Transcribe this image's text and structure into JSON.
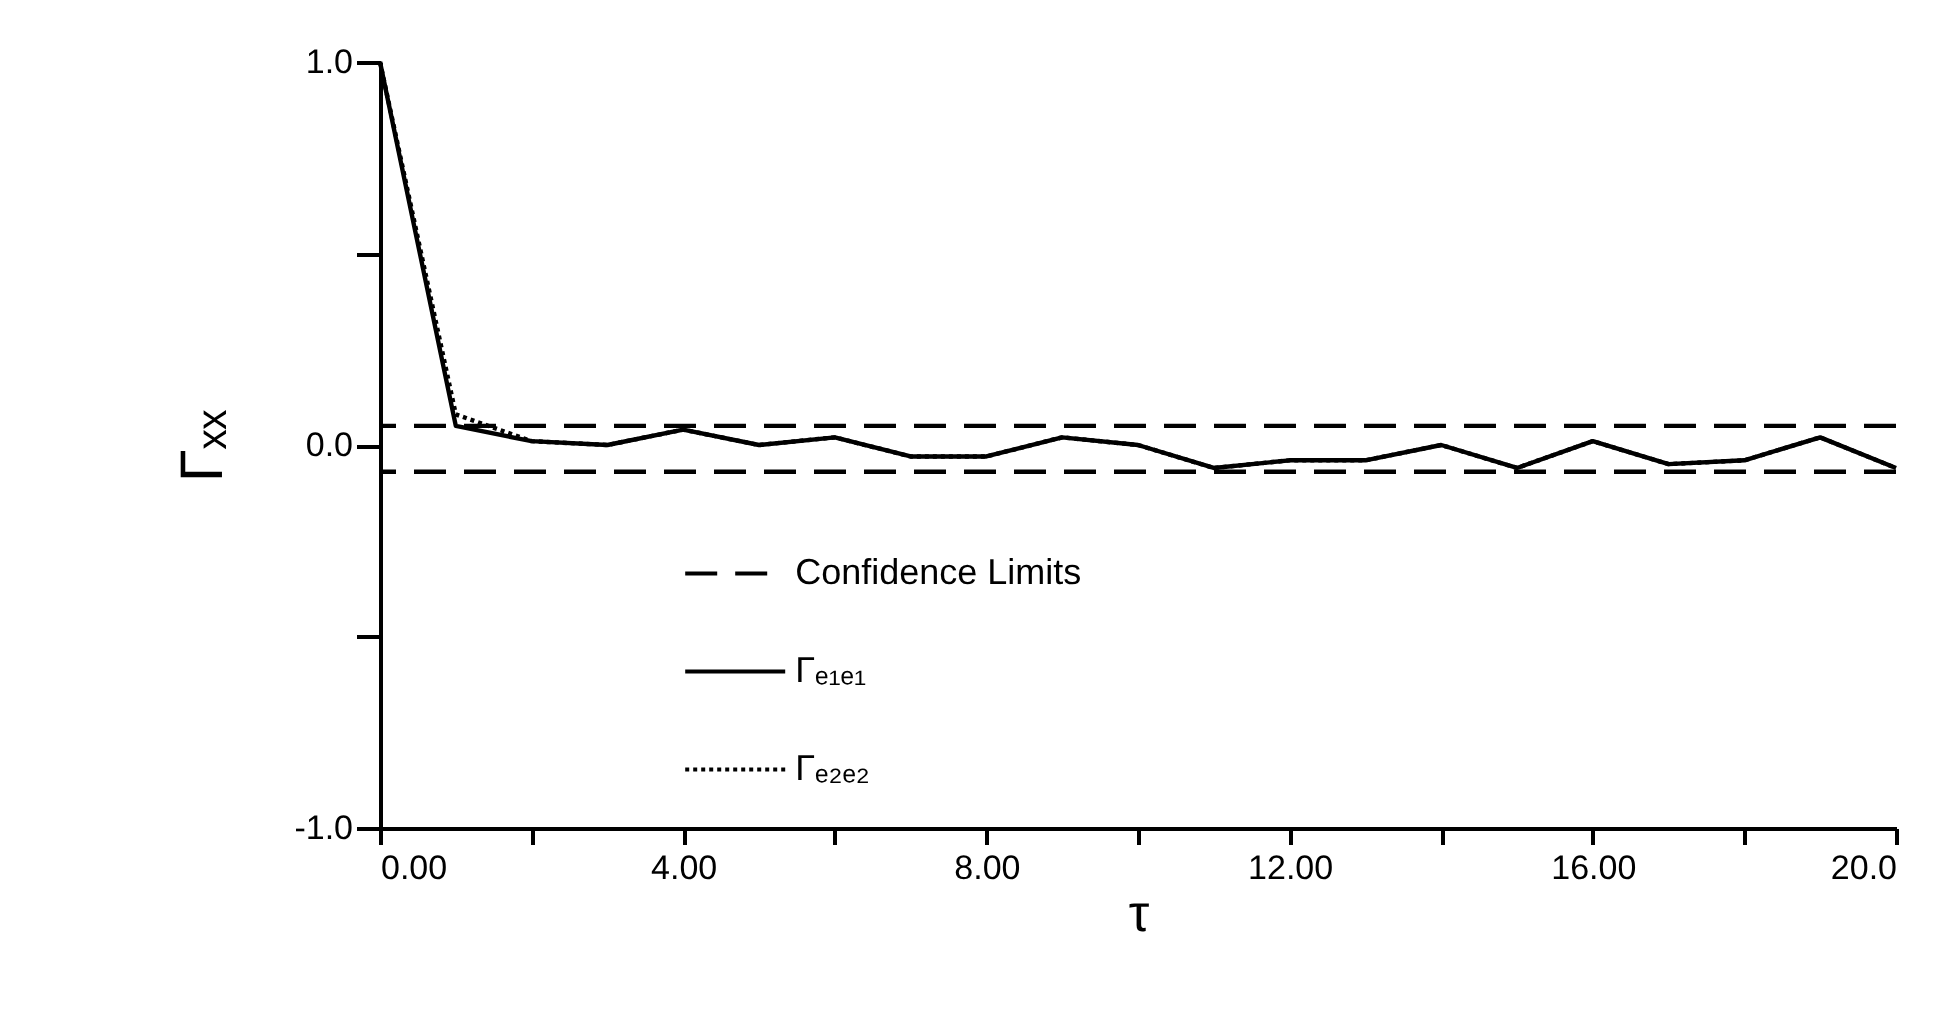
{
  "chart_data": {
    "type": "line",
    "xlabel": "τ",
    "ylabel": "Γₓₓ",
    "x": [
      0,
      1,
      2,
      3,
      4,
      5,
      6,
      7,
      8,
      9,
      10,
      11,
      12,
      13,
      14,
      15,
      16,
      17,
      18,
      19,
      20
    ],
    "series": [
      {
        "name": "Γₑ₁ₑ₁",
        "color": "#000000",
        "line_style": "solid",
        "values": [
          1.0,
          0.05,
          0.01,
          0.0,
          0.04,
          0.0,
          0.02,
          -0.03,
          -0.03,
          0.02,
          0.0,
          -0.06,
          -0.04,
          -0.04,
          0.0,
          -0.06,
          0.01,
          -0.05,
          -0.04,
          0.02,
          -0.06
        ]
      },
      {
        "name": "Γₑ₂ₑ₂",
        "color": "#000000",
        "line_style": "dotted",
        "values": [
          1.0,
          0.08,
          0.01,
          0.0,
          0.04,
          0.0,
          0.02,
          -0.03,
          -0.03,
          0.02,
          0.0,
          -0.06,
          -0.04,
          -0.04,
          0.0,
          -0.06,
          0.01,
          -0.05,
          -0.04,
          0.02,
          -0.06
        ]
      }
    ],
    "ref_lines": [
      {
        "axis": "y",
        "value": 0.05,
        "label": "Confidence Limits",
        "color": "#000000",
        "line_style": "dashed"
      },
      {
        "axis": "y",
        "value": -0.07,
        "color": "#000000",
        "line_style": "dashed"
      }
    ],
    "xlim": [
      0,
      20
    ],
    "xticks": [
      {
        "value": 0,
        "label": "0.00"
      },
      {
        "value": 2,
        "label": null
      },
      {
        "value": 4,
        "label": "4.00"
      },
      {
        "value": 6,
        "label": null
      },
      {
        "value": 8,
        "label": "8.00"
      },
      {
        "value": 10,
        "label": null
      },
      {
        "value": 12,
        "label": "12.00"
      },
      {
        "value": 14,
        "label": null
      },
      {
        "value": 16,
        "label": "16.00"
      },
      {
        "value": 18,
        "label": null
      },
      {
        "value": 20,
        "label": "20.0"
      }
    ],
    "ylim": [
      -1,
      1
    ],
    "yticks": [
      {
        "value": -1,
        "label": "-1.0"
      },
      {
        "value": -0.5,
        "label": null
      },
      {
        "value": 0,
        "label": "0.0"
      },
      {
        "value": 0.5,
        "label": null
      },
      {
        "value": 1,
        "label": "1.0"
      }
    ],
    "grid": false,
    "legend": "bottom",
    "marker": "none"
  }
}
